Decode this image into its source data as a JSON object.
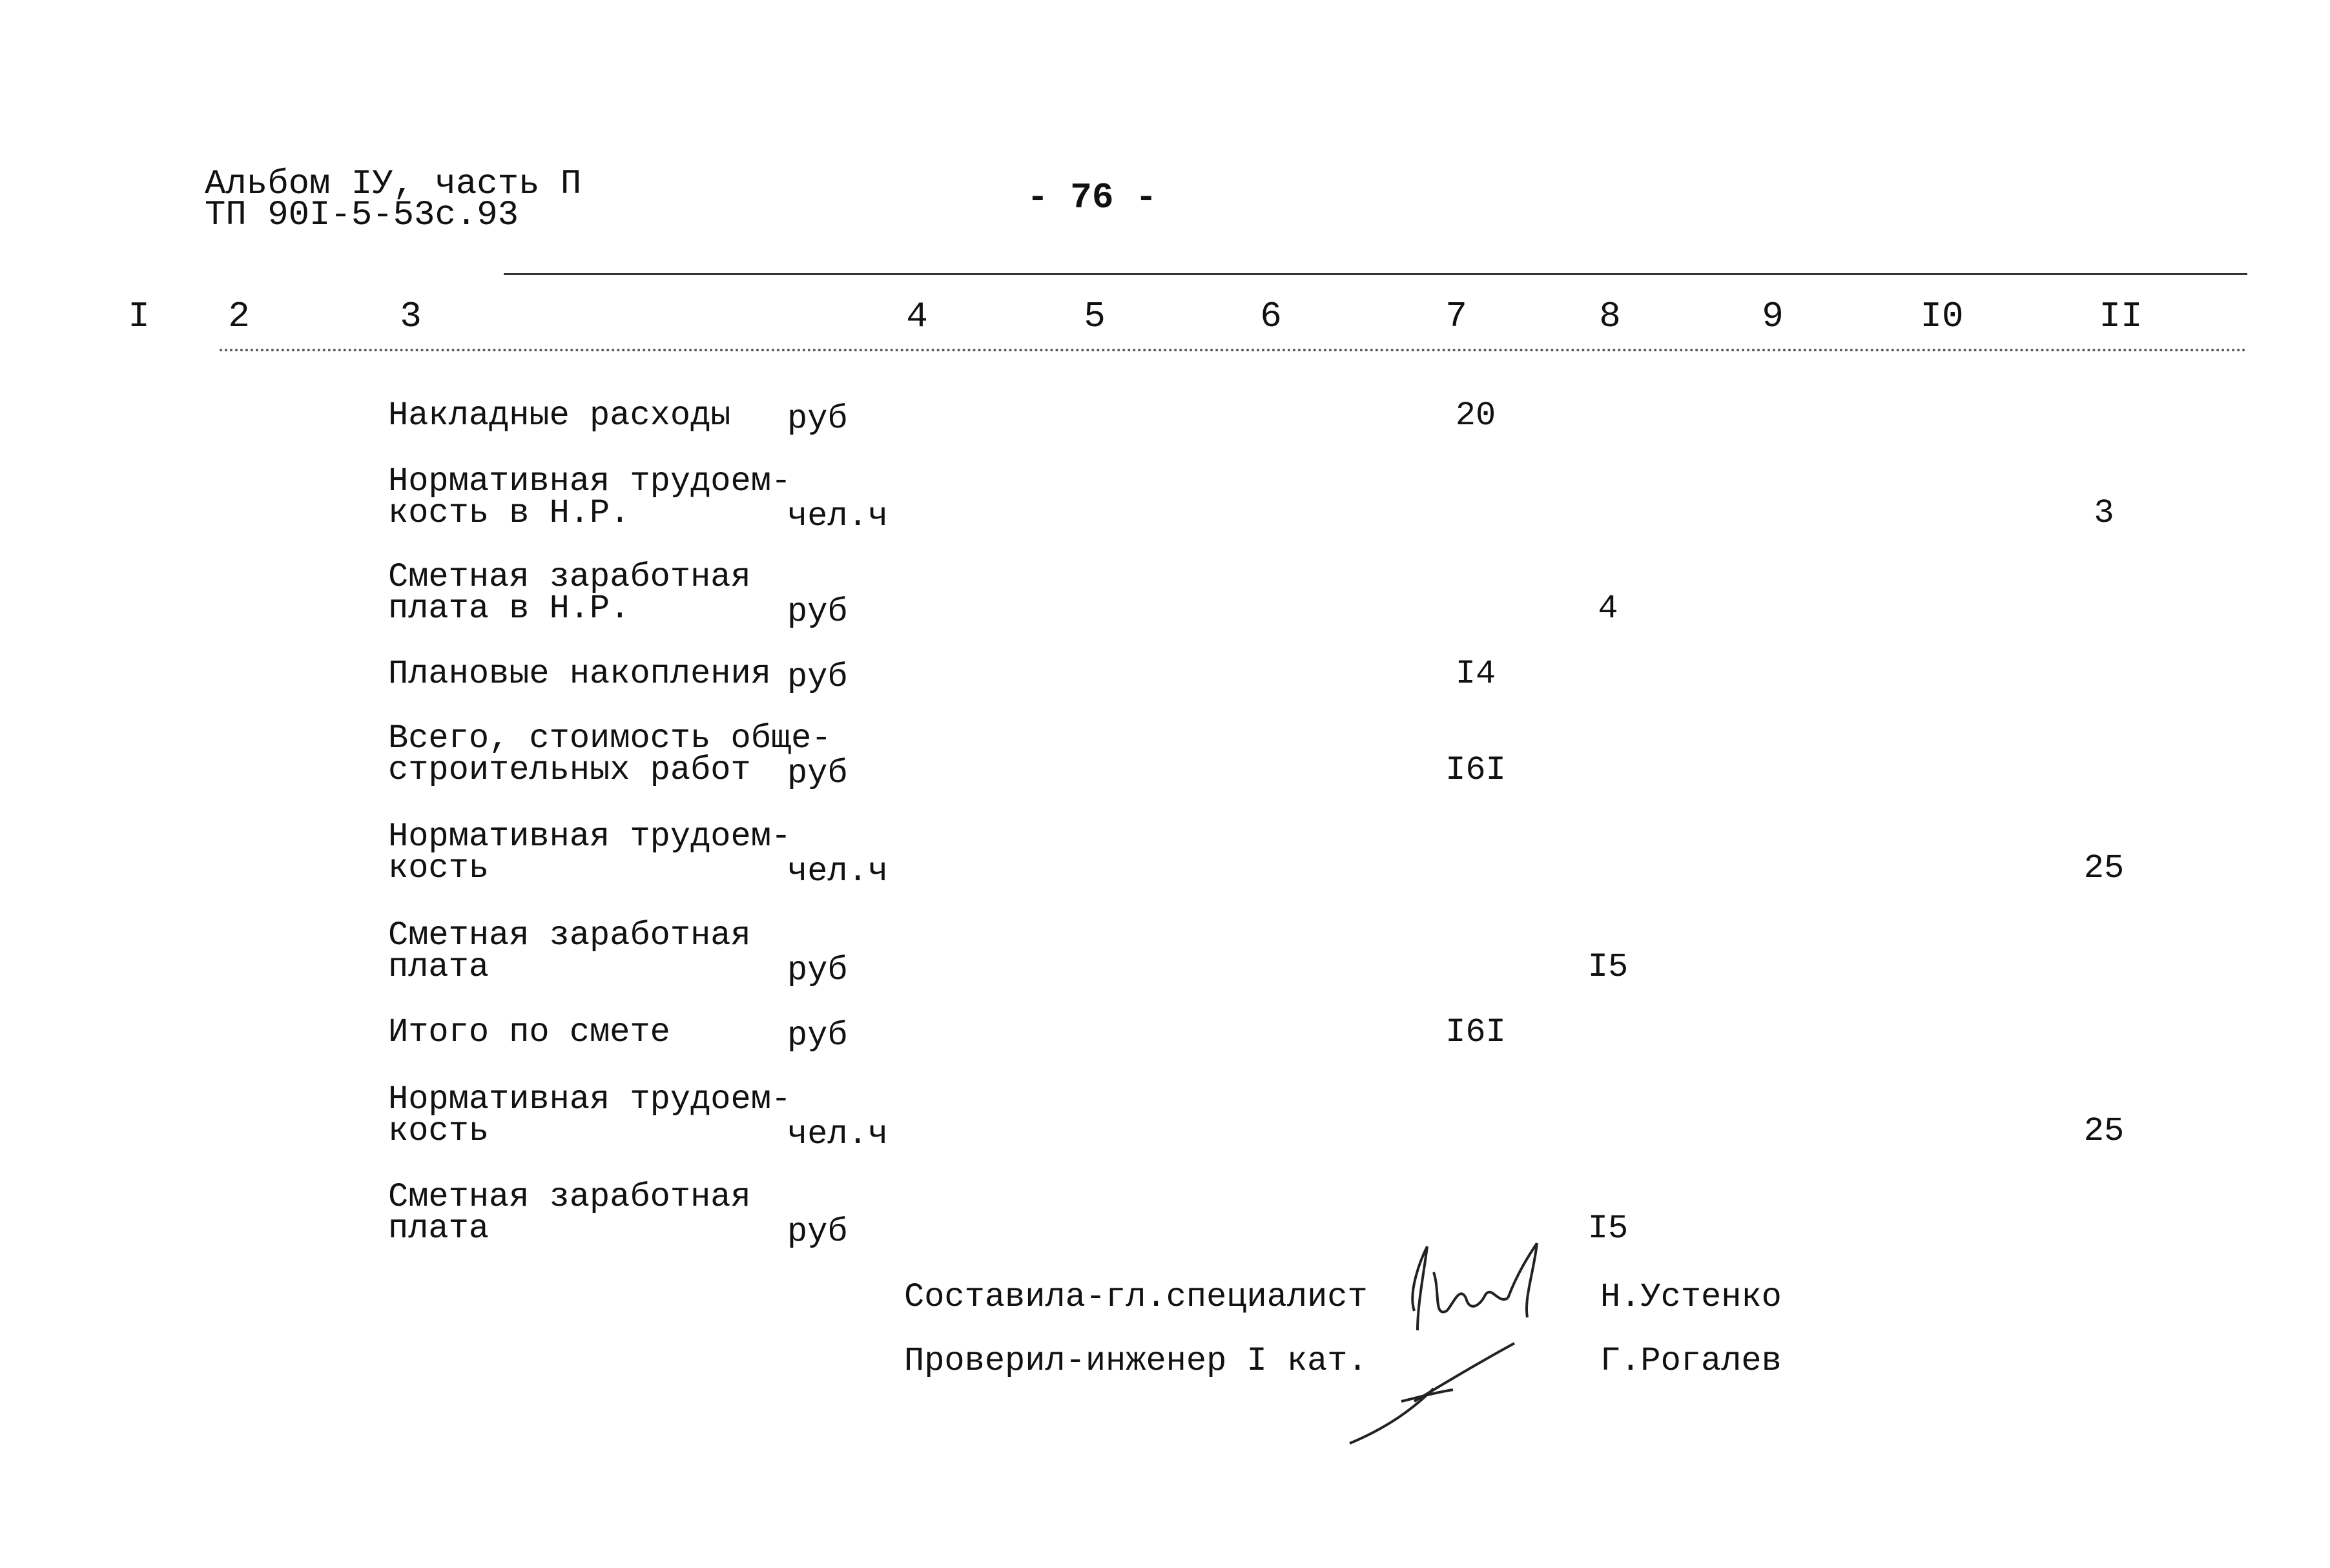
{
  "header": {
    "album": "Альбом IУ, часть П",
    "project": "ТП 90I-5-53с.93",
    "page_number": "- 76 -"
  },
  "columns": [
    "I",
    "2",
    "3",
    "4",
    "5",
    "6",
    "7",
    "8",
    "9",
    "I0",
    "II"
  ],
  "rows": [
    {
      "label": [
        "Накладные расходы"
      ],
      "unit": "руб",
      "value": "20",
      "column": "7"
    },
    {
      "label": [
        "Нормативная трудоем-",
        "кость в Н.Р."
      ],
      "unit": "чел.ч",
      "value": "3",
      "column": "II"
    },
    {
      "label": [
        "Сметная заработная",
        "плата в Н.Р."
      ],
      "unit": "руб",
      "value": "4",
      "column": "8"
    },
    {
      "label": [
        "Плановые накопления"
      ],
      "unit": "руб",
      "value": "I4",
      "column": "7"
    },
    {
      "label": [
        "Всего, стоимость обще-",
        "строительных работ"
      ],
      "unit": "руб",
      "value": "I6I",
      "column": "7"
    },
    {
      "label": [
        "Нормативная трудоем-",
        "кость"
      ],
      "unit": "чел.ч",
      "value": "25",
      "column": "II"
    },
    {
      "label": [
        "Сметная заработная",
        "плата"
      ],
      "unit": "руб",
      "value": "I5",
      "column": "8"
    },
    {
      "label": [
        "Итого по смете"
      ],
      "unit": "руб",
      "value": "I6I",
      "column": "7"
    },
    {
      "label": [
        "Нормативная трудоем-",
        "кость"
      ],
      "unit": "чел.ч",
      "value": "25",
      "column": "II"
    },
    {
      "label": [
        "Сметная заработная",
        "плата"
      ],
      "unit": "руб",
      "value": "I5",
      "column": "8"
    }
  ],
  "signatures": [
    {
      "role": "Составила-гл.специалист",
      "name": "Н.Устенко"
    },
    {
      "role": "Проверил-инженер I кат.",
      "name": "Г.Рогалев"
    }
  ]
}
